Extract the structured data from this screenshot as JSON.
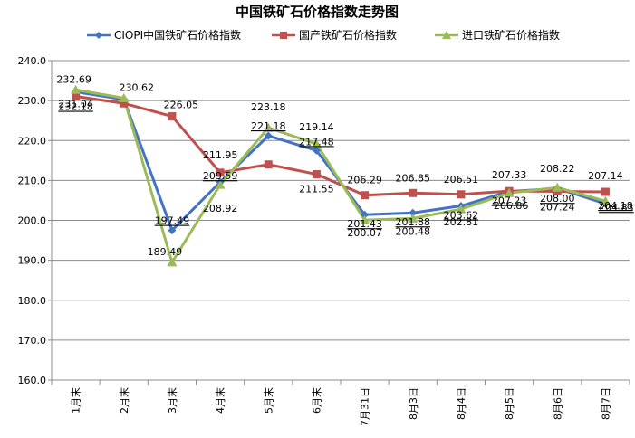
{
  "chart_data": {
    "type": "line",
    "title": "中国铁矿石价格指数走势图",
    "categories": [
      "1月末",
      "2月末",
      "3月末",
      "4月末",
      "5月末",
      "6月末",
      "7月31日",
      "8月3日",
      "8月4日",
      "8月5日",
      "8月6日",
      "8月7日"
    ],
    "ylim": [
      160,
      240
    ],
    "yticks": [
      "160.0",
      "170.0",
      "180.0",
      "190.0",
      "200.0",
      "210.0",
      "220.0",
      "230.0",
      "240.0"
    ],
    "grid": "horizontal",
    "legend_position": "top",
    "series": [
      {
        "name": "CIOPI中国铁矿石价格指数",
        "color": "#4472C4",
        "marker": "diamond",
        "values": [
          232.18,
          230.3,
          197.49,
          209.59,
          221.18,
          217.48,
          201.43,
          201.88,
          203.62,
          207.23,
          208.0,
          204.18
        ],
        "labels": [
          "232.18",
          "",
          "197.49",
          "209.59",
          "221.18",
          "217.48",
          "201.43",
          "201.88",
          "203.62",
          "207.23",
          "208.00",
          "204.18"
        ]
      },
      {
        "name": "国产铁矿石价格指数",
        "color": "#C0504D",
        "marker": "square",
        "values": [
          231.04,
          229.3,
          226.05,
          211.95,
          214.0,
          211.55,
          206.29,
          206.85,
          206.51,
          207.33,
          207.24,
          207.14
        ],
        "labels": [
          "231.04",
          "",
          "226.05",
          "211.95",
          "",
          "211.55",
          "206.29",
          "206.85",
          "206.51",
          "207.33",
          "207.24",
          "207.14"
        ]
      },
      {
        "name": "进口铁矿石价格指数",
        "color": "#9BBB59",
        "marker": "triangle",
        "values": [
          232.69,
          230.62,
          189.49,
          208.92,
          223.18,
          219.14,
          200.07,
          200.48,
          202.81,
          206.86,
          208.22,
          204.83
        ],
        "labels": [
          "232.69",
          "230.62",
          "189.49",
          "208.92",
          "223.18",
          "219.14",
          "200.07",
          "200.48",
          "202.81",
          "206.86",
          "208.22",
          "204.83"
        ]
      }
    ]
  }
}
